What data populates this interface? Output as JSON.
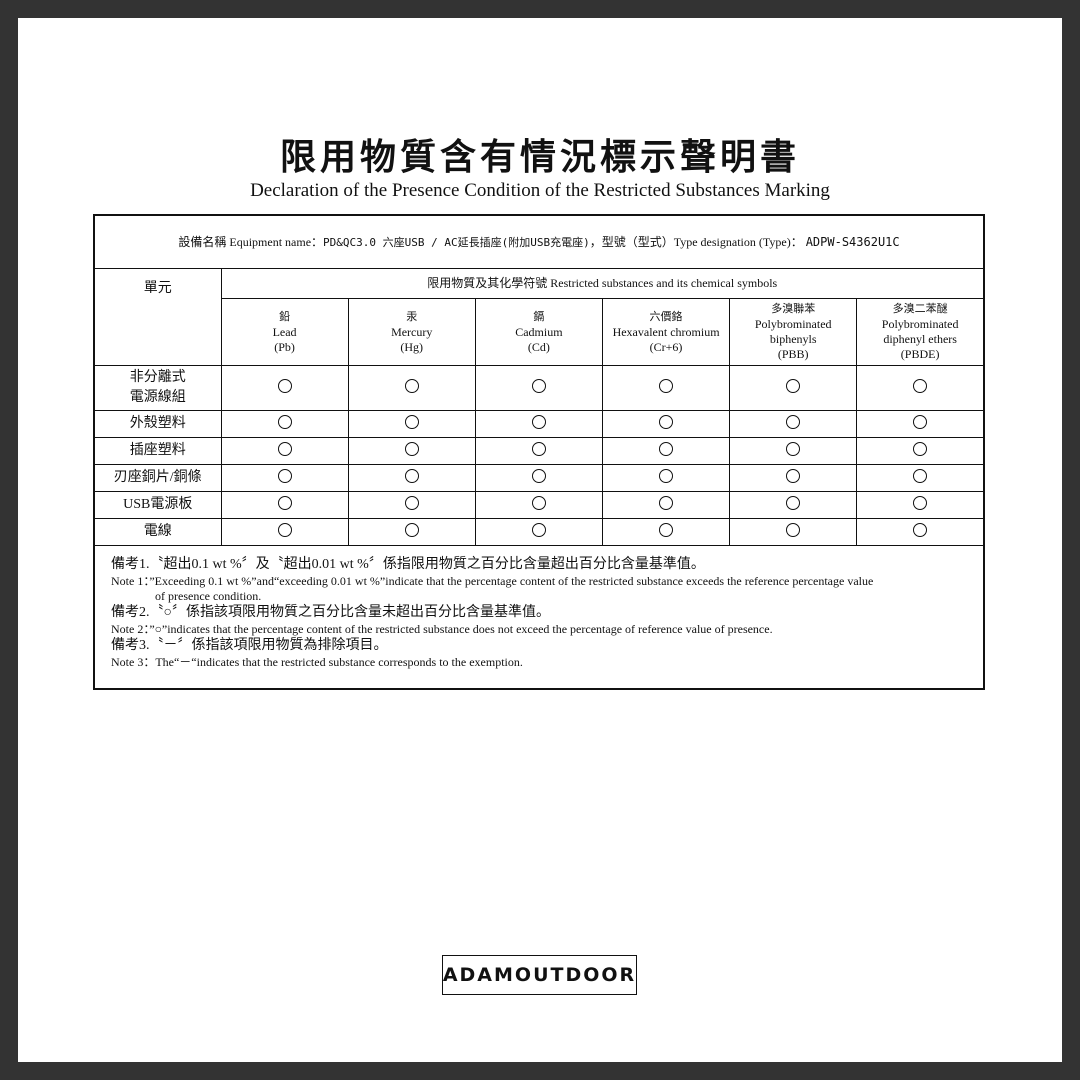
{
  "title_zh": "限用物質含有情況標示聲明書",
  "title_en": "Declaration of the Presence Condition of the Restricted Substances Marking",
  "equipment": {
    "label": "設備名稱 Equipment name：",
    "name": "PD&QC3.0 六座USB / AC延長插座(附加USB充電座)",
    "type_label": "，型號（型式）Type designation (Type)：",
    "type": "ADPW-S4362U1C"
  },
  "unit_header": "單元",
  "substances_header": "限用物質及其化學符號  Restricted substances and its chemical symbols",
  "columns": [
    {
      "zh": "鉛",
      "en": "Lead",
      "sym": "(Pb)"
    },
    {
      "zh": "汞",
      "en": "Mercury",
      "sym": "(Hg)"
    },
    {
      "zh": "鎘",
      "en": "Cadmium",
      "sym": "(Cd)"
    },
    {
      "zh": "六價鉻",
      "en": "Hexavalent chromium",
      "sym": "(Cr+6)"
    },
    {
      "zh": "多溴聯苯",
      "en": "Polybrominated biphenyls",
      "sym": "(PBB)"
    },
    {
      "zh": "多溴二苯醚",
      "en": "Polybrominated diphenyl ethers",
      "sym": "(PBDE)"
    }
  ],
  "rows": [
    {
      "unit": "非分離式\n電源線組",
      "values": [
        "○",
        "○",
        "○",
        "○",
        "○",
        "○"
      ]
    },
    {
      "unit": "外殼塑料",
      "values": [
        "○",
        "○",
        "○",
        "○",
        "○",
        "○"
      ]
    },
    {
      "unit": "插座塑料",
      "values": [
        "○",
        "○",
        "○",
        "○",
        "○",
        "○"
      ]
    },
    {
      "unit": "刃座銅片/銅條",
      "values": [
        "○",
        "○",
        "○",
        "○",
        "○",
        "○"
      ]
    },
    {
      "unit": "USB電源板",
      "values": [
        "○",
        "○",
        "○",
        "○",
        "○",
        "○"
      ]
    },
    {
      "unit": "電線",
      "values": [
        "○",
        "○",
        "○",
        "○",
        "○",
        "○"
      ]
    }
  ],
  "notes": [
    {
      "zh": "備考1.〝超出0.1 wt %〞及〝超出0.01 wt %〞係指限用物質之百分比含量超出百分比含量基準值。",
      "en": "Note 1：”Exceeding 0.1 wt %”and“exceeding 0.01 wt %”indicate that the percentage content of the restricted substance exceeds the reference percentage value",
      "en2": "of presence condition."
    },
    {
      "zh": "備考2.〝○〞係指該項限用物質之百分比含量未超出百分比含量基準值。",
      "en": "Note 2：”○”indicates that the percentage content of the restricted substance does not exceed the percentage of reference value of presence."
    },
    {
      "zh": "備考3.〝－〞係指該項限用物質為排除項目。",
      "en": "Note 3：The“－“indicates that the restricted substance corresponds to the exemption."
    }
  ],
  "logo": "ADAMOUTDOOR"
}
